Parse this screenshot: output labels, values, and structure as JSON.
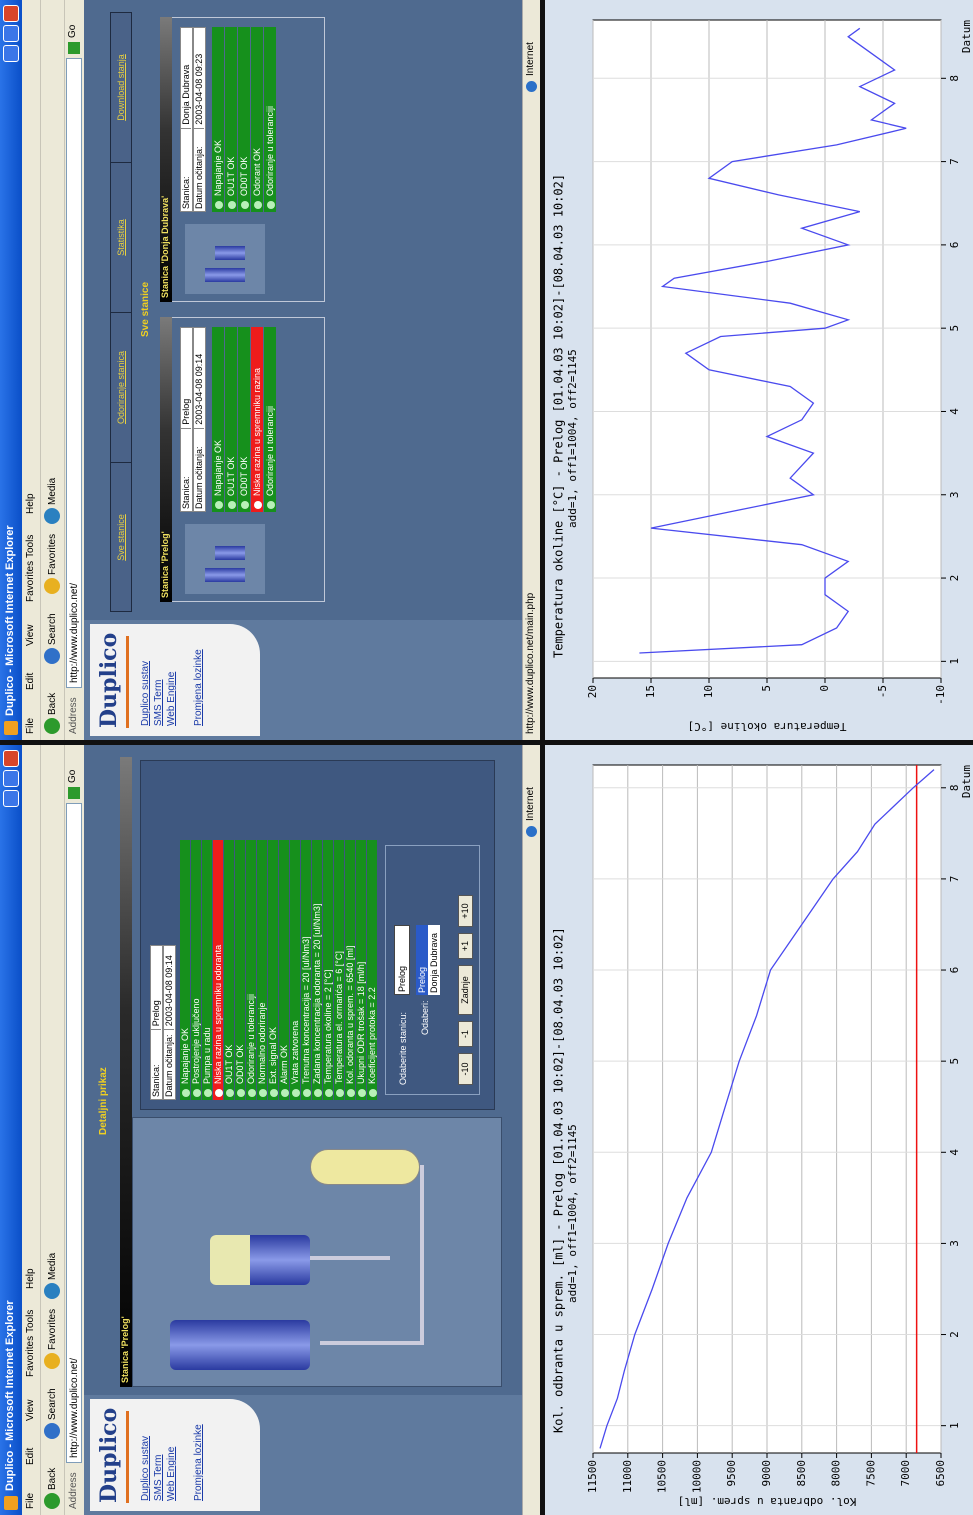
{
  "browsers": [
    {
      "window_title": "Duplico - Microsoft Internet Explorer",
      "menu": [
        "File",
        "Edit",
        "View",
        "Favorites",
        "Tools",
        "Help"
      ],
      "toolbar": [
        "Back",
        "Search",
        "Favorites",
        "Media"
      ],
      "address_label": "Address",
      "url": "http://www.duplico.net/",
      "go": "Go",
      "logo": "Duplico",
      "nav": [
        "Duplico sustav",
        "SMS Term",
        "Web Engine",
        "Promjena lozinke"
      ],
      "heading": "Detaljni prikaz",
      "station_title": "Stanica 'Prelog'",
      "info": [
        [
          "Stanica:",
          "Prelog"
        ],
        [
          "Datum očitanja:",
          "2003-04-08 09:14"
        ]
      ],
      "statuses": [
        {
          "text": "Napajanje OK",
          "alarm": false
        },
        {
          "text": "Postrojenje uključeno",
          "alarm": false
        },
        {
          "text": "Pumpa u radu",
          "alarm": false
        },
        {
          "text": "Niska razina u spremniku odoranta",
          "alarm": true
        },
        {
          "text": "OU1T OK",
          "alarm": false
        },
        {
          "text": "OD0T OK",
          "alarm": false
        },
        {
          "text": "Odoriranje u toleranciji",
          "alarm": false
        },
        {
          "text": "Normalno odoriranje",
          "alarm": false
        },
        {
          "text": "Ext. signal OK",
          "alarm": false
        },
        {
          "text": "Alarm OK",
          "alarm": false
        },
        {
          "text": "Vrata zatvorena",
          "alarm": false
        },
        {
          "text": "Trenutna koncentracija = 20 [ul/Nm3]",
          "alarm": false
        },
        {
          "text": "Zadana koncentracija odoranta = 20 [ul/Nm3]",
          "alarm": false
        },
        {
          "text": "Temperatura okoline = 2 [°C]",
          "alarm": false
        },
        {
          "text": "Temperatura el. ormarića = 6 [°C]",
          "alarm": false
        },
        {
          "text": "Kol. odoranta u sprem. = 6540 [ml]",
          "alarm": false
        },
        {
          "text": "Ukupni ODR trošak = 18 [ml/h]",
          "alarm": false
        },
        {
          "text": "Koeficijent protoka = 2.2",
          "alarm": false
        }
      ],
      "select_label": "Odaberite stanicu:",
      "select_value": "Prelog",
      "list_label": "Odaberi:",
      "select_options": [
        "Prelog",
        "Donja Dubrava"
      ],
      "buttons": [
        "-10",
        "-1",
        "Zadnje",
        "+1",
        "+10"
      ],
      "zone": "Internet"
    },
    {
      "window_title": "Duplico - Microsoft Internet Explorer",
      "menu": [
        "File",
        "Edit",
        "View",
        "Favorites",
        "Tools",
        "Help"
      ],
      "toolbar": [
        "Back",
        "Search",
        "Favorites",
        "Media"
      ],
      "address_label": "Address",
      "url": "http://www.duplico.net/",
      "go": "Go",
      "logo": "Duplico",
      "nav": [
        "Duplico sustav",
        "SMS Term",
        "Web Engine",
        "Promjena lozinke"
      ],
      "tabs": [
        "Sve stanice",
        "Odoriranje stanica",
        "Statistika",
        "Download stanja"
      ],
      "heading": "Sve stanice",
      "stations": [
        {
          "title": "Stanica 'Prelog'",
          "info": [
            [
              "Stanica:",
              "Prelog"
            ],
            [
              "Datum očitanja:",
              "2003-04-08 09:14"
            ]
          ],
          "statuses": [
            {
              "text": "Napajanje OK",
              "alarm": false
            },
            {
              "text": "OU1T OK",
              "alarm": false
            },
            {
              "text": "OD0T OK",
              "alarm": false
            },
            {
              "text": "Niska razina u spremniku razina",
              "alarm": true
            },
            {
              "text": "Odoriranje u toleranciji",
              "alarm": false
            }
          ]
        },
        {
          "title": "Stanica 'Donja Dubrava'",
          "info": [
            [
              "Stanica:",
              "Donja Dubrava"
            ],
            [
              "Datum očitanja:",
              "2003-04-08 09:23"
            ]
          ],
          "statuses": [
            {
              "text": "Napajanje OK",
              "alarm": false
            },
            {
              "text": "OU1T OK",
              "alarm": false
            },
            {
              "text": "OD0T OK",
              "alarm": false
            },
            {
              "text": "Odorant OK",
              "alarm": false
            },
            {
              "text": "Odoriranje u toleranciji",
              "alarm": false
            }
          ]
        }
      ],
      "status_url": "http://www.duplico.net/main.php",
      "zone": "Internet"
    }
  ],
  "chart_data": [
    {
      "type": "line",
      "title": "Kol. odbranta u sprem. [ml] - Prelog [01.04.03 10:02]-[08.04.03 10:02]",
      "subtitle": "add=1, off1=1004, off2=1145",
      "x_label": "Datum",
      "y_label": "Kol. odbranta u sprem. [ml]",
      "x": [
        0.75,
        1.0,
        1.3,
        1.6,
        2.0,
        2.5,
        3.0,
        3.5,
        4.0,
        4.5,
        5.0,
        5.5,
        6.0,
        6.5,
        7.0,
        7.3,
        7.6,
        8.0,
        8.1,
        8.2
      ],
      "series": [
        {
          "color": "#4a4aee",
          "values": [
            11400,
            11300,
            11150,
            11050,
            10900,
            10650,
            10420,
            10150,
            9800,
            9600,
            9400,
            9150,
            8950,
            8500,
            8050,
            7700,
            7450,
            6900,
            6750,
            6600
          ]
        }
      ],
      "reference_line": {
        "value": 6850,
        "color": "#ee1111"
      },
      "xlim": [
        0.7,
        8.25
      ],
      "xticks": [
        1,
        2,
        3,
        4,
        5,
        6,
        7,
        8
      ],
      "ylim": [
        6500,
        11500
      ],
      "yticks": [
        6500,
        7000,
        7500,
        8000,
        8500,
        9000,
        9500,
        10000,
        10500,
        11000,
        11500
      ],
      "grid": true
    },
    {
      "type": "line",
      "title": "Temperatura okoline [°C] - Prelog [01.04.03 10:02]-[08.04.03 10:02]",
      "subtitle": "add=1, off1=1004, off2=1145",
      "x_label": "Datum",
      "y_label": "Temperatura okoline [°C]",
      "x": [
        1.1,
        1.2,
        1.4,
        1.6,
        1.8,
        2.0,
        2.2,
        2.4,
        2.6,
        2.8,
        3.0,
        3.2,
        3.5,
        3.7,
        3.9,
        4.1,
        4.3,
        4.5,
        4.7,
        4.9,
        5.0,
        5.1,
        5.3,
        5.5,
        5.6,
        5.8,
        6.0,
        6.2,
        6.4,
        6.6,
        6.8,
        7.0,
        7.2,
        7.4,
        7.5,
        7.7,
        7.9,
        8.1,
        8.3,
        8.5,
        8.6
      ],
      "series": [
        {
          "color": "#4a4aee",
          "values": [
            16,
            2,
            -1,
            -2,
            0,
            0,
            -2,
            2,
            15,
            8,
            1,
            3,
            1,
            5,
            2,
            1,
            3,
            10,
            12,
            9,
            0,
            -2,
            3,
            14,
            13,
            5,
            -2,
            2,
            -3,
            4,
            10,
            8,
            -1,
            -7,
            -4,
            -6,
            -3,
            -6,
            -4,
            -2,
            -3
          ]
        }
      ],
      "xlim": [
        0.8,
        8.7
      ],
      "xticks": [
        1,
        2,
        3,
        4,
        5,
        6,
        7,
        8
      ],
      "ylim": [
        -10,
        20
      ],
      "yticks": [
        -10,
        -5,
        0,
        5,
        10,
        15,
        20
      ],
      "grid": true
    }
  ]
}
